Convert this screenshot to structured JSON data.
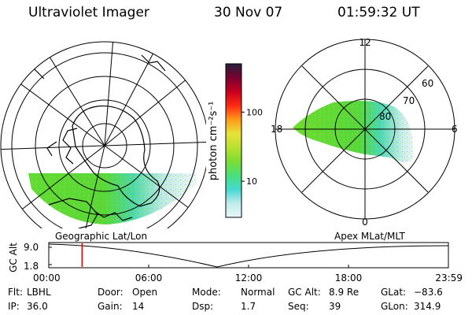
{
  "header": {
    "title": "Ultraviolet Imager",
    "date": "30 Nov 07",
    "time": "01:59:32 UT"
  },
  "colorbar": {
    "label": "photon cm⁻²s⁻¹",
    "ticks": [
      {
        "label": "10",
        "value": 10
      },
      {
        "label": "100",
        "value": 100
      }
    ],
    "min": 3,
    "max": 500,
    "colors": [
      "#e6f6f6",
      "#c2ecec",
      "#45d8d0",
      "#49e07a",
      "#7cdc32",
      "#b8e030",
      "#e8e238",
      "#ff9a18",
      "#ff2a14",
      "#c8001e",
      "#7a0030",
      "#26203c"
    ]
  },
  "maps": {
    "left_caption": "Geographic Lat/Lon",
    "right_caption": "Apex MLat/MLT",
    "right_mlt_labels": {
      "top": "12",
      "left": "18",
      "right": "6",
      "bottom": "0"
    },
    "right_lat_labels": [
      "60",
      "70",
      "80"
    ]
  },
  "timeline": {
    "ylabel": "GC Alt",
    "yticks": [
      "9.0",
      "1.8"
    ],
    "xticks": [
      "00:00",
      "06:00",
      "12:00",
      "18:00",
      "23:59"
    ],
    "current_time_hours": 2.0,
    "marker_color": "#e00000"
  },
  "info": {
    "row1": [
      {
        "key": "Flt:",
        "value": "LBHL"
      },
      {
        "key": "Door:",
        "value": "Open"
      },
      {
        "key": "Mode:",
        "value": "Normal"
      },
      {
        "key": "GC Alt:",
        "value": "8.9 Re"
      },
      {
        "key": "GLat:",
        "value": "−83.6"
      }
    ],
    "row2": [
      {
        "key": "IP:",
        "value": "36.0"
      },
      {
        "key": "Gain:",
        "value": "14"
      },
      {
        "key": "Dsp:",
        "value": "1.7"
      },
      {
        "key": "Seq:",
        "value": "39"
      },
      {
        "key": "GLon:",
        "value": "314.9"
      }
    ]
  }
}
